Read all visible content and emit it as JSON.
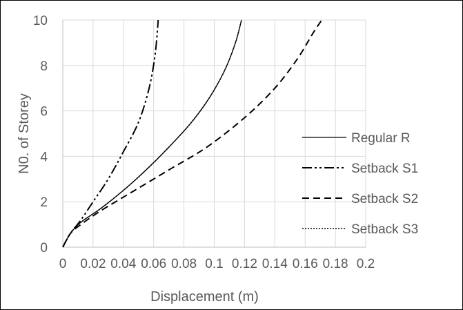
{
  "chart_data": {
    "type": "line",
    "title": "",
    "xlabel": "Displacement (m)",
    "ylabel": "N0. of Storey",
    "xlim": [
      0,
      0.2
    ],
    "ylim": [
      0,
      10
    ],
    "x_ticks": [
      "0",
      "0.02",
      "0.04",
      "0.06",
      "0.08",
      "0.1",
      "0.12",
      "0.14",
      "0.16",
      "0.18",
      "0.2"
    ],
    "y_ticks": [
      "0",
      "2",
      "4",
      "6",
      "8",
      "10"
    ],
    "grid": true,
    "legend_position": "right",
    "series": [
      {
        "name": "Regular R",
        "style": "solid",
        "color": "#000000",
        "points": [
          [
            0,
            0
          ],
          [
            0.005,
            0.6
          ],
          [
            0.012,
            1.1
          ],
          [
            0.025,
            1.7
          ],
          [
            0.04,
            2.5
          ],
          [
            0.055,
            3.4
          ],
          [
            0.07,
            4.4
          ],
          [
            0.085,
            5.5
          ],
          [
            0.097,
            6.6
          ],
          [
            0.107,
            7.8
          ],
          [
            0.114,
            9.0
          ],
          [
            0.118,
            10
          ]
        ]
      },
      {
        "name": "Setback S1",
        "style": "dash-dot-dot",
        "color": "#000000",
        "points": [
          [
            0,
            0
          ],
          [
            0.005,
            0.6
          ],
          [
            0.012,
            1.2
          ],
          [
            0.02,
            2.0
          ],
          [
            0.03,
            3.0
          ],
          [
            0.04,
            4.2
          ],
          [
            0.05,
            5.5
          ],
          [
            0.057,
            7.0
          ],
          [
            0.061,
            8.5
          ],
          [
            0.063,
            10
          ]
        ]
      },
      {
        "name": "Setback S2",
        "style": "dashed",
        "color": "#000000",
        "points": [
          [
            0,
            0
          ],
          [
            0.005,
            0.6
          ],
          [
            0.012,
            1.0
          ],
          [
            0.025,
            1.6
          ],
          [
            0.045,
            2.4
          ],
          [
            0.07,
            3.4
          ],
          [
            0.095,
            4.4
          ],
          [
            0.12,
            5.7
          ],
          [
            0.14,
            7.0
          ],
          [
            0.155,
            8.3
          ],
          [
            0.165,
            9.4
          ],
          [
            0.171,
            10
          ]
        ]
      },
      {
        "name": "Setback S3",
        "style": "dotted",
        "color": "#000000",
        "points": [
          [
            0,
            0
          ],
          [
            0.005,
            0.6
          ],
          [
            0.012,
            1.1
          ],
          [
            0.025,
            1.7
          ],
          [
            0.04,
            2.5
          ],
          [
            0.055,
            3.4
          ],
          [
            0.07,
            4.4
          ],
          [
            0.085,
            5.5
          ],
          [
            0.097,
            6.6
          ],
          [
            0.107,
            7.8
          ],
          [
            0.114,
            9.0
          ],
          [
            0.118,
            10
          ]
        ]
      }
    ]
  }
}
